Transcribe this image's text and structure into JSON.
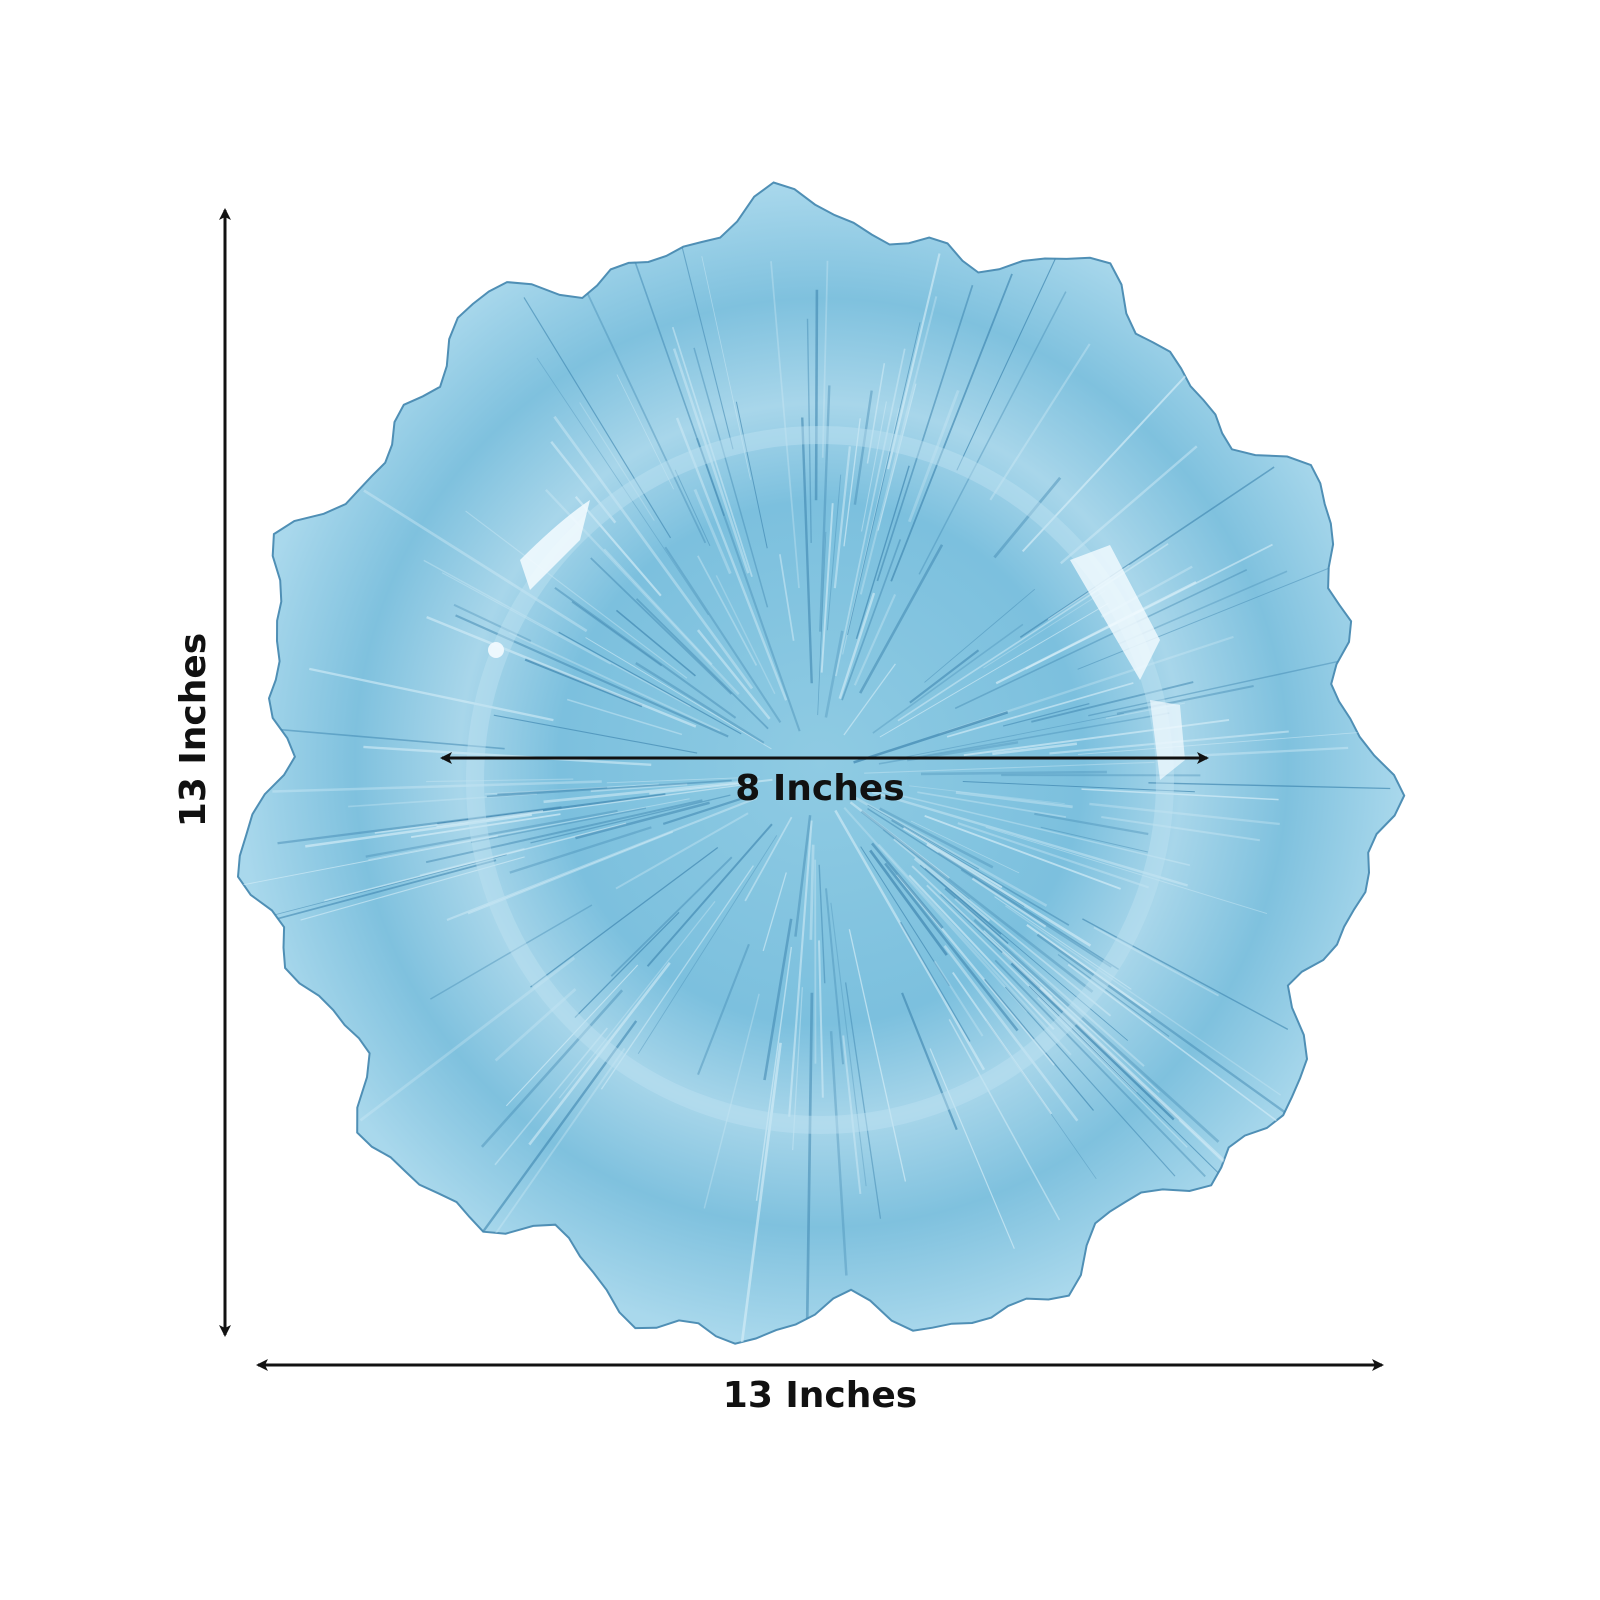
{
  "dimensions": {
    "height": "13 Inches",
    "width": "13 Inches",
    "inner_diameter": "8 Inches"
  }
}
